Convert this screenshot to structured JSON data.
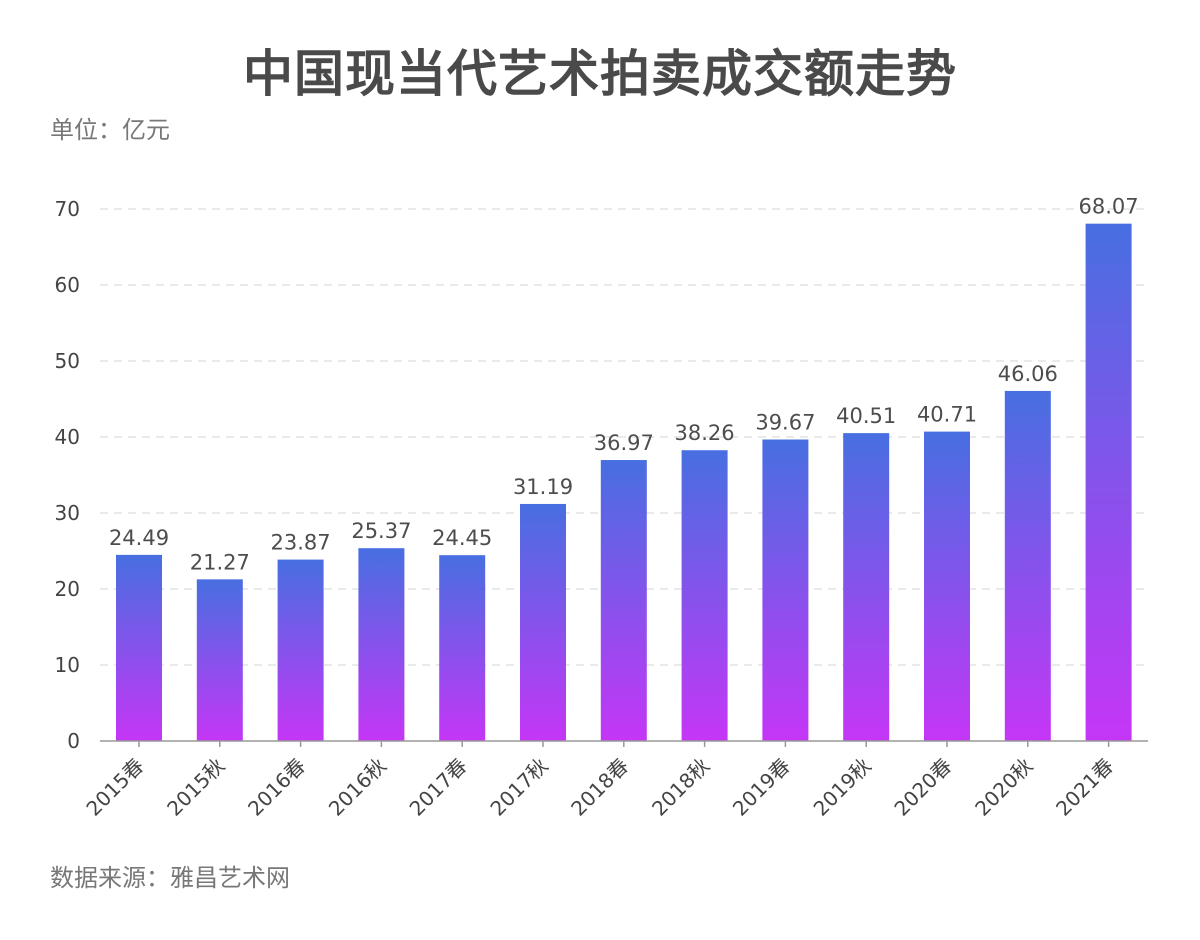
{
  "chart_data": {
    "type": "bar",
    "title": "中国现当代艺术拍卖成交额走势",
    "unit_label": "单位：亿元",
    "source_label": "数据来源：雅昌艺术网",
    "categories": [
      "2015春",
      "2015秋",
      "2016春",
      "2016秋",
      "2017春",
      "2017秋",
      "2018春",
      "2018秋",
      "2019春",
      "2019秋",
      "2020春",
      "2020秋",
      "2021春"
    ],
    "values": [
      24.49,
      21.27,
      23.87,
      25.37,
      24.45,
      31.19,
      36.97,
      38.26,
      39.67,
      40.51,
      40.71,
      46.06,
      68.07
    ],
    "value_labels": [
      "24.49",
      "21.27",
      "23.87",
      "25.37",
      "24.45",
      "31.19",
      "36.97",
      "38.26",
      "39.67",
      "40.51",
      "40.71",
      "46.06",
      "68.07"
    ],
    "y_ticks": [
      0,
      10,
      20,
      30,
      40,
      50,
      60,
      70
    ],
    "ylim": [
      0,
      70
    ],
    "grid": true,
    "colors": {
      "bar_top": "#476FE1",
      "bar_bottom": "#C536F6",
      "grid": "#E4E4E4",
      "axis": "#999999"
    }
  }
}
